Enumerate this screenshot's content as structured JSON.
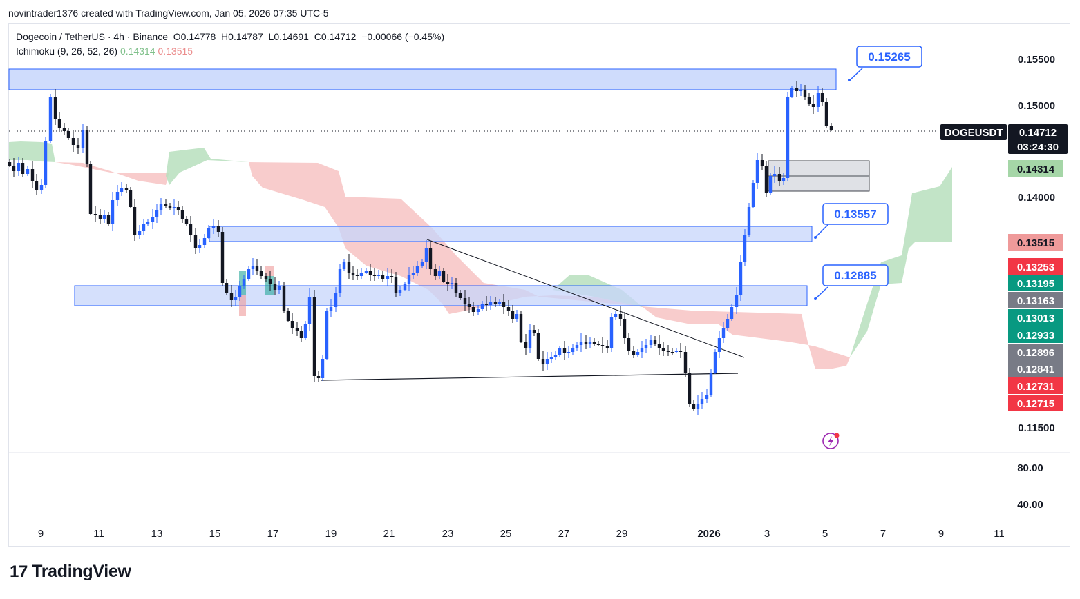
{
  "header": {
    "credit": "novintrader1376 created with TradingView.com, Jan 05, 2026 07:35 UTC-5"
  },
  "legend": {
    "symbol_line": "Dogecoin / TetherUS · 4h · Binance",
    "open": "O0.14778",
    "high": "H0.14787",
    "low": "L0.14691",
    "close": "C0.14712",
    "change": "−0.00066 (−0.45%)",
    "indicator": "Ichimoku (9, 26, 52, 26)",
    "ich_value_a": "0.14314",
    "ich_value_b": "0.13515"
  },
  "colors": {
    "up": "#2962ff",
    "down": "#131722",
    "zone": "#c7d6fb",
    "zone_border": "#2962ff",
    "cloud_green": "#b7dfbd",
    "cloud_red": "#f7c6c6"
  },
  "chart_data": {
    "type": "candlestick",
    "title": "Dogecoin / TetherUS · 4h · Binance",
    "y_axis_ticks": [
      "0.15500",
      "0.15000",
      "0.14000",
      "0.11500"
    ],
    "lower_pane_ticks": [
      "80.00",
      "40.00"
    ],
    "x_axis_ticks": [
      "9",
      "11",
      "13",
      "15",
      "17",
      "19",
      "21",
      "23",
      "25",
      "27",
      "29",
      "2026",
      "3",
      "5",
      "7",
      "9",
      "11"
    ],
    "current_price": {
      "symbol": "DOGEUSDT",
      "value": "0.14712",
      "countdown": "03:24:30"
    },
    "price_tags": [
      {
        "value": "0.14314",
        "color": "#a5d6a7",
        "text_color": "#131722"
      },
      {
        "value": "0.13515",
        "color": "#ef9a9a",
        "text_color": "#131722"
      },
      {
        "value": "0.13253",
        "color": "#f23645",
        "text_color": "#ffffff"
      },
      {
        "value": "0.13195",
        "color": "#089981",
        "text_color": "#ffffff"
      },
      {
        "value": "0.13163",
        "color": "#787b86",
        "text_color": "#ffffff"
      },
      {
        "value": "0.13013",
        "color": "#089981",
        "text_color": "#ffffff"
      },
      {
        "value": "0.12933",
        "color": "#089981",
        "text_color": "#ffffff"
      },
      {
        "value": "0.12896",
        "color": "#787b86",
        "text_color": "#ffffff"
      },
      {
        "value": "0.12841",
        "color": "#787b86",
        "text_color": "#ffffff"
      },
      {
        "value": "0.12731",
        "color": "#f23645",
        "text_color": "#ffffff"
      },
      {
        "value": "0.12715",
        "color": "#f23645",
        "text_color": "#ffffff"
      }
    ],
    "zones": [
      {
        "name": "top-resistance-zone",
        "callout": "0.15265"
      },
      {
        "name": "mid-zone",
        "callout": "0.13557"
      },
      {
        "name": "low-zone",
        "callout": "0.12885"
      }
    ]
  },
  "footer": {
    "brand": "TradingView"
  }
}
